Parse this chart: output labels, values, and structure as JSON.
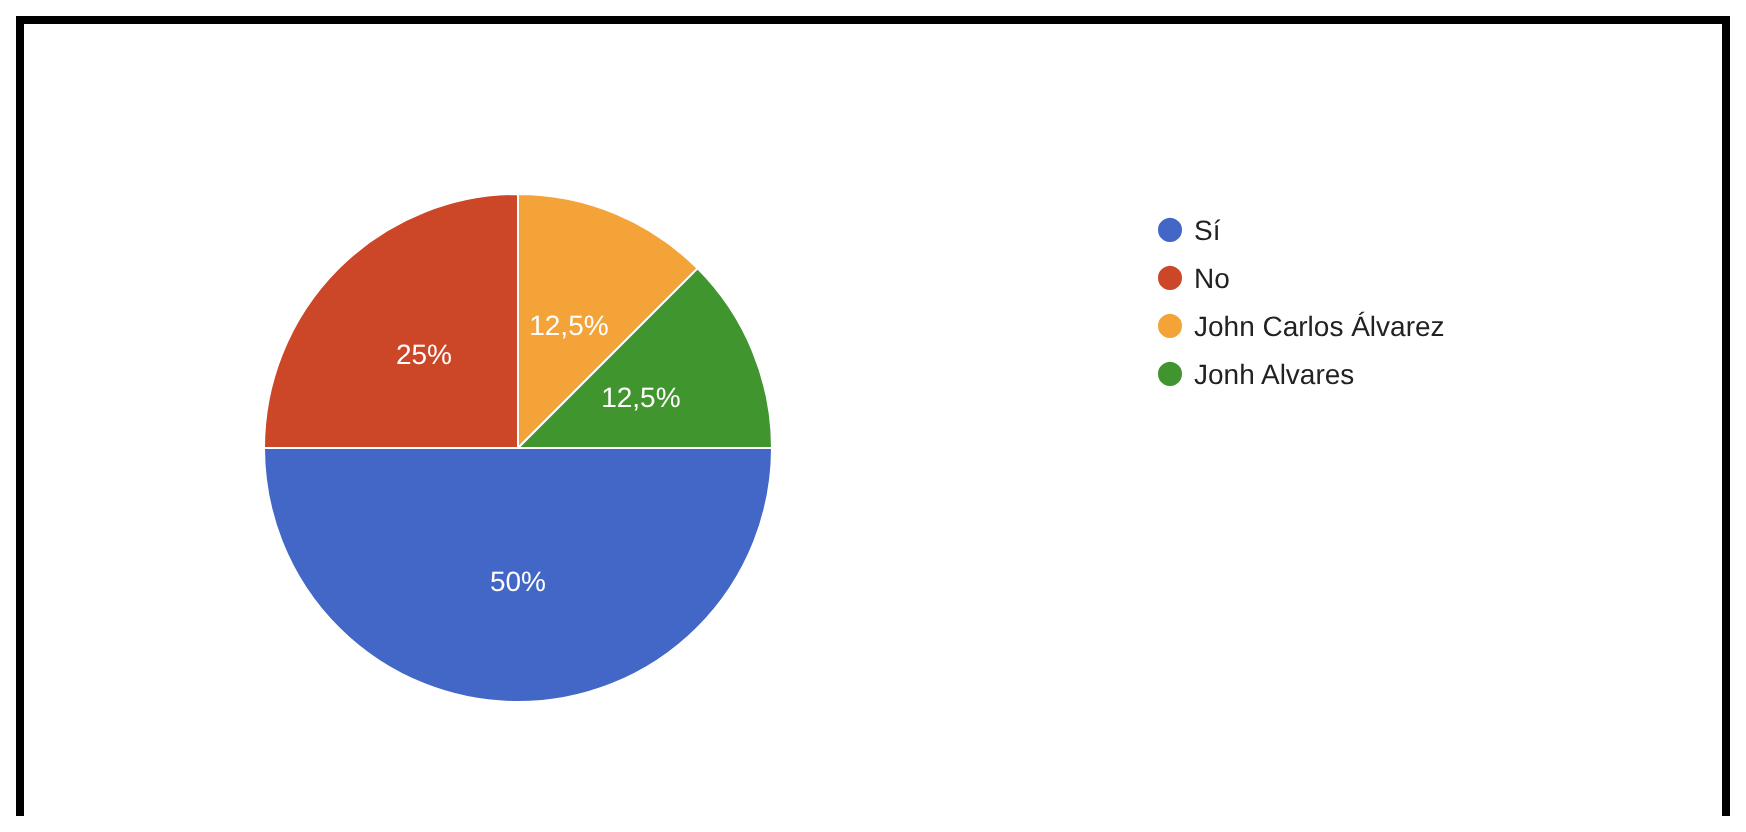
{
  "chart_data": {
    "type": "pie",
    "categories": [
      "Sí",
      "No",
      "John Carlos Álvarez",
      "Jonh Alvares"
    ],
    "values": [
      50,
      25,
      12.5,
      12.5
    ],
    "colors": [
      "#4267c7",
      "#cb4728",
      "#f3a338",
      "#41952e"
    ],
    "value_labels": [
      "50%",
      "25%",
      "12,5%",
      "12,5%"
    ],
    "legend": "right"
  }
}
